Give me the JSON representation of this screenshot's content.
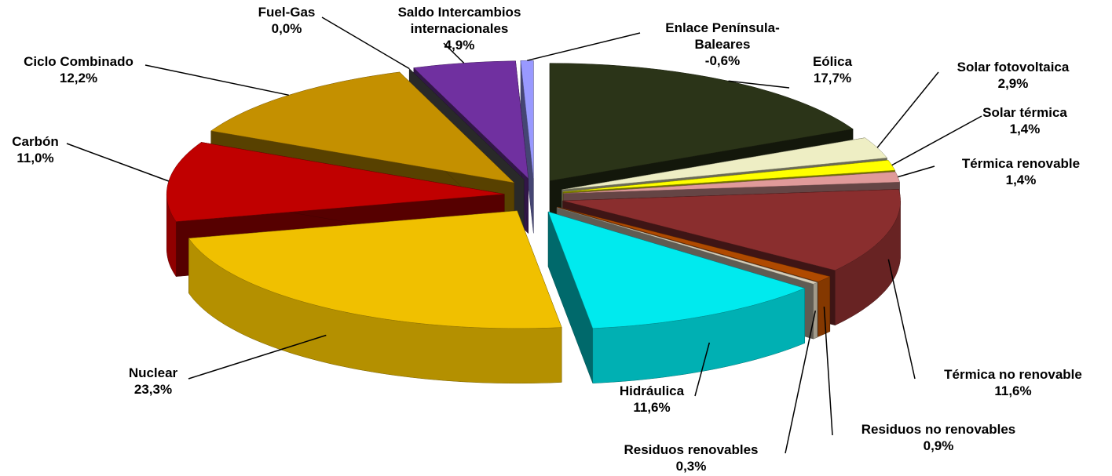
{
  "chart_data": {
    "type": "pie",
    "categories": [
      "Eólica",
      "Solar fotovoltaica",
      "Solar térmica",
      "Térmica renovable",
      "Térmica no renovable",
      "Residuos no renovables",
      "Residuos renovables",
      "Hidráulica",
      "Nuclear",
      "Carbón",
      "Ciclo Combinado",
      "Fuel-Gas",
      "Saldo Intercambios internacionales",
      "Enlace Península-Baleares"
    ],
    "values": [
      17.7,
      2.9,
      1.4,
      1.4,
      11.6,
      0.9,
      0.3,
      11.6,
      23.3,
      11.0,
      12.2,
      0.0,
      4.9,
      -0.6
    ],
    "value_labels": [
      "17,7%",
      "2,9%",
      "1,4%",
      "1,4%",
      "11,6%",
      "0,9%",
      "0,3%",
      "11,6%",
      "23,3%",
      "11,0%",
      "12,2%",
      "0,0%",
      "4,9%",
      "-0,6%"
    ],
    "colors": [
      "#2b3418",
      "#eeeec4",
      "#ffff00",
      "#e09a9a",
      "#8a2e2e",
      "#b04a00",
      "#d6cdb8",
      "#00eaee",
      "#f0c000",
      "#c00000",
      "#c49000",
      "#5a5a5a",
      "#7030a0",
      "#9999ff"
    ]
  }
}
